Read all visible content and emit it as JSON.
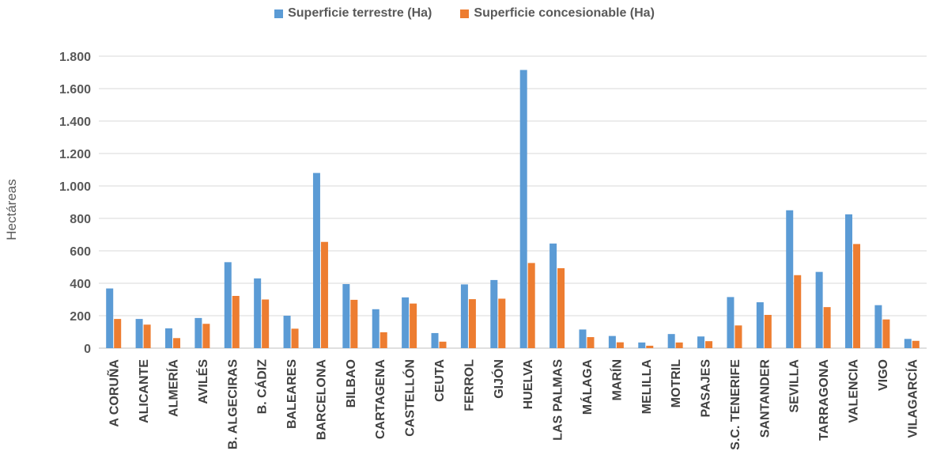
{
  "chart_data": {
    "type": "bar",
    "title": "",
    "xlabel": "",
    "ylabel": "Hectáreas",
    "ylim": [
      0,
      1800
    ],
    "yticks": [
      0,
      200,
      400,
      600,
      800,
      1000,
      1200,
      1400,
      1600,
      1800
    ],
    "ytick_labels": [
      "0",
      "200",
      "400",
      "600",
      "800",
      "1.000",
      "1.200",
      "1.400",
      "1.600",
      "1.800"
    ],
    "legend_position": "top-center",
    "grid": "horizontal",
    "categories": [
      "A CORUÑA",
      "ALICANTE",
      "ALMERÍA",
      "AVILÉS",
      "B. ALGECIRAS",
      "B. CÁDIZ",
      "BALEARES",
      "BARCELONA",
      "BILBAO",
      "CARTAGENA",
      "CASTELLÓN",
      "CEUTA",
      "FERROL",
      "GIJÓN",
      "HUELVA",
      "LAS PALMAS",
      "MÁLAGA",
      "MARÍN",
      "MELILLA",
      "MOTRIL",
      "PASAJES",
      "S.C. TENERIFE",
      "SANTANDER",
      "SEVILLA",
      "TARRAGONA",
      "VALENCIA",
      "VIGO",
      "VILAGARCÍA"
    ],
    "series": [
      {
        "name": "Superficie terrestre (Ha)",
        "color": "#5b9bd5",
        "values": [
          368,
          180,
          122,
          186,
          530,
          430,
          200,
          1080,
          395,
          240,
          313,
          93,
          393,
          420,
          1715,
          645,
          115,
          75,
          35,
          87,
          72,
          315,
          283,
          850,
          470,
          825,
          265,
          57
        ]
      },
      {
        "name": "Superficie concesionable (Ha)",
        "color": "#ed7d31",
        "values": [
          180,
          145,
          62,
          150,
          322,
          300,
          120,
          655,
          298,
          98,
          275,
          40,
          302,
          305,
          525,
          493,
          68,
          36,
          15,
          35,
          43,
          140,
          205,
          450,
          253,
          642,
          177,
          45
        ]
      }
    ]
  }
}
